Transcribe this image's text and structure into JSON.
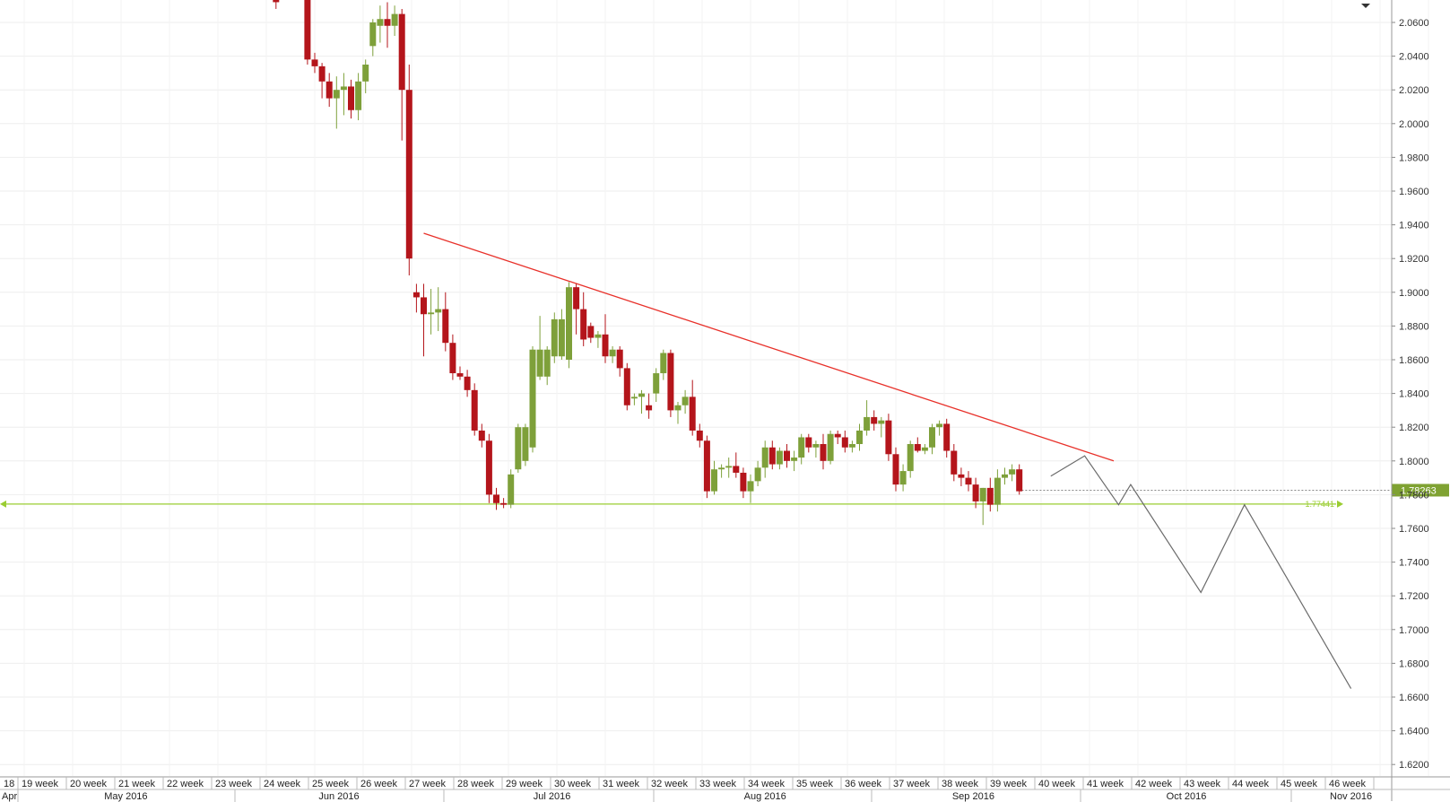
{
  "chart_data": {
    "type": "candlestick",
    "y_axis": {
      "position": "right",
      "range": [
        1.61,
        2.07
      ],
      "ticks": [
        "1.6200",
        "1.6400",
        "1.6600",
        "1.6800",
        "1.7000",
        "1.7200",
        "1.7400",
        "1.7600",
        "1.7800",
        "1.8000",
        "1.8200",
        "1.8400",
        "1.8600",
        "1.8800",
        "1.9000",
        "1.9200",
        "1.9400",
        "1.9600",
        "1.9800",
        "2.0000",
        "2.0200",
        "2.0400",
        "2.0600"
      ]
    },
    "week_labels": [
      "18",
      "19 week",
      "20 week",
      "21 week",
      "22 week",
      "23 week",
      "24 week",
      "25 week",
      "26 week",
      "27 week",
      "28 week",
      "29 week",
      "30 week",
      "31 week",
      "32 week",
      "33 week",
      "34 week",
      "35 week",
      "36 week",
      "37 week",
      "38 week",
      "39 week",
      "40 week",
      "41 week",
      "42 week",
      "43 week",
      "44 week",
      "45 week",
      "46 week"
    ],
    "month_labels": [
      {
        "label": "Apr",
        "week": 0
      },
      {
        "label": "May 2016",
        "week": 2.1
      },
      {
        "label": "Jun 2016",
        "week": 6.5
      },
      {
        "label": "Jul 2016",
        "week": 10.9
      },
      {
        "label": "Aug 2016",
        "week": 15.3
      },
      {
        "label": "Sep 2016",
        "week": 19.6
      },
      {
        "label": "Oct 2016",
        "week": 24.0
      },
      {
        "label": "Nov 2016",
        "week": 27.4
      }
    ],
    "candles": [
      {
        "w": 5.2,
        "o": 2.075,
        "h": 2.08,
        "l": 2.068,
        "c": 2.072
      },
      {
        "w": 5.85,
        "o": 2.085,
        "h": 2.09,
        "l": 2.035,
        "c": 2.038
      },
      {
        "w": 6.0,
        "o": 2.038,
        "h": 2.042,
        "l": 2.03,
        "c": 2.034
      },
      {
        "w": 6.15,
        "o": 2.034,
        "h": 2.036,
        "l": 2.015,
        "c": 2.025
      },
      {
        "w": 6.3,
        "o": 2.025,
        "h": 2.03,
        "l": 2.01,
        "c": 2.015
      },
      {
        "w": 6.45,
        "o": 2.015,
        "h": 2.028,
        "l": 1.997,
        "c": 2.02
      },
      {
        "w": 6.6,
        "o": 2.02,
        "h": 2.03,
        "l": 2.005,
        "c": 2.022
      },
      {
        "w": 6.75,
        "o": 2.022,
        "h": 2.026,
        "l": 2.003,
        "c": 2.008
      },
      {
        "w": 6.9,
        "o": 2.008,
        "h": 2.03,
        "l": 2.002,
        "c": 2.025
      },
      {
        "w": 7.05,
        "o": 2.025,
        "h": 2.038,
        "l": 2.018,
        "c": 2.035
      },
      {
        "w": 7.2,
        "o": 2.046,
        "h": 2.062,
        "l": 2.04,
        "c": 2.06
      },
      {
        "w": 7.35,
        "o": 2.058,
        "h": 2.07,
        "l": 2.048,
        "c": 2.062
      },
      {
        "w": 7.5,
        "o": 2.062,
        "h": 2.072,
        "l": 2.045,
        "c": 2.058
      },
      {
        "w": 7.65,
        "o": 2.058,
        "h": 2.07,
        "l": 2.052,
        "c": 2.065
      },
      {
        "w": 7.8,
        "o": 2.065,
        "h": 2.068,
        "l": 1.99,
        "c": 2.02
      },
      {
        "w": 7.95,
        "o": 2.02,
        "h": 2.035,
        "l": 1.91,
        "c": 1.92
      },
      {
        "w": 8.1,
        "o": 1.9,
        "h": 1.905,
        "l": 1.888,
        "c": 1.897
      },
      {
        "w": 8.25,
        "o": 1.897,
        "h": 1.905,
        "l": 1.862,
        "c": 1.887
      },
      {
        "w": 8.4,
        "o": 1.887,
        "h": 1.902,
        "l": 1.875,
        "c": 1.888
      },
      {
        "w": 8.55,
        "o": 1.888,
        "h": 1.903,
        "l": 1.877,
        "c": 1.89
      },
      {
        "w": 8.7,
        "o": 1.89,
        "h": 1.9,
        "l": 1.865,
        "c": 1.87
      },
      {
        "w": 8.85,
        "o": 1.87,
        "h": 1.875,
        "l": 1.848,
        "c": 1.852
      },
      {
        "w": 9.0,
        "o": 1.852,
        "h": 1.856,
        "l": 1.848,
        "c": 1.85
      },
      {
        "w": 9.15,
        "o": 1.85,
        "h": 1.854,
        "l": 1.838,
        "c": 1.842
      },
      {
        "w": 9.3,
        "o": 1.842,
        "h": 1.846,
        "l": 1.815,
        "c": 1.818
      },
      {
        "w": 9.45,
        "o": 1.818,
        "h": 1.822,
        "l": 1.808,
        "c": 1.812
      },
      {
        "w": 9.6,
        "o": 1.812,
        "h": 1.816,
        "l": 1.775,
        "c": 1.78
      },
      {
        "w": 9.75,
        "o": 1.78,
        "h": 1.784,
        "l": 1.771,
        "c": 1.775
      },
      {
        "w": 9.9,
        "o": 1.775,
        "h": 1.778,
        "l": 1.772,
        "c": 1.774
      },
      {
        "w": 10.05,
        "o": 1.774,
        "h": 1.795,
        "l": 1.772,
        "c": 1.792
      },
      {
        "w": 10.2,
        "o": 1.795,
        "h": 1.822,
        "l": 1.793,
        "c": 1.82
      },
      {
        "w": 10.35,
        "o": 1.8,
        "h": 1.822,
        "l": 1.797,
        "c": 1.82
      },
      {
        "w": 10.5,
        "o": 1.808,
        "h": 1.868,
        "l": 1.805,
        "c": 1.866
      },
      {
        "w": 10.65,
        "o": 1.85,
        "h": 1.886,
        "l": 1.848,
        "c": 1.866
      },
      {
        "w": 10.8,
        "o": 1.85,
        "h": 1.868,
        "l": 1.845,
        "c": 1.866
      },
      {
        "w": 10.95,
        "o": 1.862,
        "h": 1.888,
        "l": 1.858,
        "c": 1.884
      },
      {
        "w": 11.1,
        "o": 1.862,
        "h": 1.89,
        "l": 1.86,
        "c": 1.884
      },
      {
        "w": 11.25,
        "o": 1.86,
        "h": 1.906,
        "l": 1.855,
        "c": 1.903
      },
      {
        "w": 11.4,
        "o": 1.903,
        "h": 1.905,
        "l": 1.875,
        "c": 1.89
      },
      {
        "w": 11.55,
        "o": 1.89,
        "h": 1.9,
        "l": 1.868,
        "c": 1.872
      },
      {
        "w": 11.7,
        "o": 1.88,
        "h": 1.882,
        "l": 1.87,
        "c": 1.873
      },
      {
        "w": 11.85,
        "o": 1.873,
        "h": 1.877,
        "l": 1.867,
        "c": 1.875
      },
      {
        "w": 12.0,
        "o": 1.875,
        "h": 1.887,
        "l": 1.858,
        "c": 1.862
      },
      {
        "w": 12.15,
        "o": 1.862,
        "h": 1.868,
        "l": 1.858,
        "c": 1.866
      },
      {
        "w": 12.3,
        "o": 1.866,
        "h": 1.868,
        "l": 1.85,
        "c": 1.855
      },
      {
        "w": 12.45,
        "o": 1.855,
        "h": 1.858,
        "l": 1.83,
        "c": 1.833
      },
      {
        "w": 12.6,
        "o": 1.837,
        "h": 1.84,
        "l": 1.833,
        "c": 1.838
      },
      {
        "w": 12.75,
        "o": 1.838,
        "h": 1.842,
        "l": 1.828,
        "c": 1.84
      },
      {
        "w": 12.9,
        "o": 1.833,
        "h": 1.84,
        "l": 1.825,
        "c": 1.83
      },
      {
        "w": 13.05,
        "o": 1.84,
        "h": 1.855,
        "l": 1.835,
        "c": 1.852
      },
      {
        "w": 13.2,
        "o": 1.852,
        "h": 1.866,
        "l": 1.848,
        "c": 1.864
      },
      {
        "w": 13.35,
        "o": 1.864,
        "h": 1.866,
        "l": 1.826,
        "c": 1.83
      },
      {
        "w": 13.5,
        "o": 1.83,
        "h": 1.835,
        "l": 1.822,
        "c": 1.833
      },
      {
        "w": 13.65,
        "o": 1.833,
        "h": 1.842,
        "l": 1.828,
        "c": 1.838
      },
      {
        "w": 13.8,
        "o": 1.838,
        "h": 1.848,
        "l": 1.815,
        "c": 1.818
      },
      {
        "w": 13.95,
        "o": 1.818,
        "h": 1.822,
        "l": 1.808,
        "c": 1.812
      },
      {
        "w": 14.1,
        "o": 1.812,
        "h": 1.815,
        "l": 1.778,
        "c": 1.782
      },
      {
        "w": 14.25,
        "o": 1.782,
        "h": 1.8,
        "l": 1.78,
        "c": 1.795
      },
      {
        "w": 14.4,
        "o": 1.795,
        "h": 1.798,
        "l": 1.79,
        "c": 1.796
      },
      {
        "w": 14.55,
        "o": 1.796,
        "h": 1.802,
        "l": 1.79,
        "c": 1.797
      },
      {
        "w": 14.7,
        "o": 1.797,
        "h": 1.805,
        "l": 1.79,
        "c": 1.793
      },
      {
        "w": 14.85,
        "o": 1.793,
        "h": 1.796,
        "l": 1.778,
        "c": 1.782
      },
      {
        "w": 15.0,
        "o": 1.782,
        "h": 1.792,
        "l": 1.775,
        "c": 1.788
      },
      {
        "w": 15.15,
        "o": 1.788,
        "h": 1.8,
        "l": 1.785,
        "c": 1.796
      },
      {
        "w": 15.3,
        "o": 1.796,
        "h": 1.812,
        "l": 1.79,
        "c": 1.808
      },
      {
        "w": 15.45,
        "o": 1.808,
        "h": 1.812,
        "l": 1.795,
        "c": 1.798
      },
      {
        "w": 15.6,
        "o": 1.798,
        "h": 1.808,
        "l": 1.795,
        "c": 1.806
      },
      {
        "w": 15.75,
        "o": 1.806,
        "h": 1.81,
        "l": 1.796,
        "c": 1.8
      },
      {
        "w": 15.9,
        "o": 1.8,
        "h": 1.806,
        "l": 1.794,
        "c": 1.802
      },
      {
        "w": 16.05,
        "o": 1.802,
        "h": 1.816,
        "l": 1.798,
        "c": 1.814
      },
      {
        "w": 16.2,
        "o": 1.814,
        "h": 1.816,
        "l": 1.805,
        "c": 1.808
      },
      {
        "w": 16.35,
        "o": 1.808,
        "h": 1.812,
        "l": 1.802,
        "c": 1.81
      },
      {
        "w": 16.5,
        "o": 1.81,
        "h": 1.816,
        "l": 1.795,
        "c": 1.8
      },
      {
        "w": 16.65,
        "o": 1.8,
        "h": 1.818,
        "l": 1.798,
        "c": 1.816
      },
      {
        "w": 16.8,
        "o": 1.816,
        "h": 1.818,
        "l": 1.81,
        "c": 1.814
      },
      {
        "w": 16.95,
        "o": 1.814,
        "h": 1.818,
        "l": 1.805,
        "c": 1.808
      },
      {
        "w": 17.1,
        "o": 1.808,
        "h": 1.812,
        "l": 1.805,
        "c": 1.81
      },
      {
        "w": 17.25,
        "o": 1.81,
        "h": 1.822,
        "l": 1.806,
        "c": 1.818
      },
      {
        "w": 17.4,
        "o": 1.818,
        "h": 1.836,
        "l": 1.815,
        "c": 1.826
      },
      {
        "w": 17.55,
        "o": 1.826,
        "h": 1.83,
        "l": 1.818,
        "c": 1.822
      },
      {
        "w": 17.7,
        "o": 1.822,
        "h": 1.826,
        "l": 1.814,
        "c": 1.824
      },
      {
        "w": 17.85,
        "o": 1.824,
        "h": 1.828,
        "l": 1.8,
        "c": 1.804
      },
      {
        "w": 18.0,
        "o": 1.804,
        "h": 1.808,
        "l": 1.782,
        "c": 1.786
      },
      {
        "w": 18.15,
        "o": 1.786,
        "h": 1.798,
        "l": 1.782,
        "c": 1.794
      },
      {
        "w": 18.3,
        "o": 1.794,
        "h": 1.812,
        "l": 1.79,
        "c": 1.81
      },
      {
        "w": 18.45,
        "o": 1.81,
        "h": 1.814,
        "l": 1.805,
        "c": 1.806
      },
      {
        "w": 18.6,
        "o": 1.806,
        "h": 1.81,
        "l": 1.804,
        "c": 1.808
      },
      {
        "w": 18.75,
        "o": 1.808,
        "h": 1.822,
        "l": 1.804,
        "c": 1.82
      },
      {
        "w": 18.9,
        "o": 1.82,
        "h": 1.824,
        "l": 1.815,
        "c": 1.822
      },
      {
        "w": 19.05,
        "o": 1.822,
        "h": 1.825,
        "l": 1.802,
        "c": 1.806
      },
      {
        "w": 19.2,
        "o": 1.806,
        "h": 1.81,
        "l": 1.788,
        "c": 1.792
      },
      {
        "w": 19.35,
        "o": 1.792,
        "h": 1.796,
        "l": 1.785,
        "c": 1.79
      },
      {
        "w": 19.5,
        "o": 1.79,
        "h": 1.794,
        "l": 1.782,
        "c": 1.786
      },
      {
        "w": 19.65,
        "o": 1.786,
        "h": 1.79,
        "l": 1.772,
        "c": 1.776
      },
      {
        "w": 19.8,
        "o": 1.776,
        "h": 1.784,
        "l": 1.762,
        "c": 1.784
      },
      {
        "w": 19.95,
        "o": 1.784,
        "h": 1.79,
        "l": 1.77,
        "c": 1.774
      },
      {
        "w": 20.1,
        "o": 1.774,
        "h": 1.795,
        "l": 1.77,
        "c": 1.79
      },
      {
        "w": 20.25,
        "o": 1.79,
        "h": 1.796,
        "l": 1.786,
        "c": 1.792
      },
      {
        "w": 20.4,
        "o": 1.792,
        "h": 1.798,
        "l": 1.788,
        "c": 1.795
      },
      {
        "w": 20.55,
        "o": 1.795,
        "h": 1.798,
        "l": 1.78,
        "c": 1.782
      }
    ],
    "resistance_line": {
      "from": {
        "w": 8.25,
        "y": 1.935
      },
      "to": {
        "w": 22.5,
        "y": 1.8
      },
      "color": "#e8312a"
    },
    "support_line": {
      "y": 1.77441,
      "label": "1.77441",
      "color": "#9acd32"
    },
    "current_price": {
      "y": 1.78263,
      "label": "1.78263",
      "color": "#7fa232"
    },
    "projection": {
      "points": [
        {
          "w": 21.2,
          "y": 1.791
        },
        {
          "w": 21.9,
          "y": 1.803
        },
        {
          "w": 22.6,
          "y": 1.774
        },
        {
          "w": 22.85,
          "y": 1.786
        },
        {
          "w": 24.3,
          "y": 1.722
        },
        {
          "w": 25.2,
          "y": 1.774
        },
        {
          "w": 27.4,
          "y": 1.665
        }
      ],
      "color": "#6b6b6b"
    },
    "grid": true,
    "legend": "none"
  }
}
